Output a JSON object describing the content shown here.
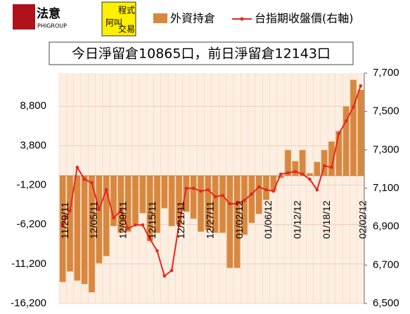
{
  "chart_data": {
    "type": "bar_line",
    "title": "今日淨留倉10865口，前日淨留倉12143口",
    "logos": [
      "法意",
      "PHIGROUP",
      "程式",
      "阿叫",
      "交易"
    ],
    "categories": [
      "11/29/11",
      null,
      null,
      null,
      "12/05/11",
      null,
      null,
      null,
      "12/09/11",
      null,
      null,
      null,
      "12/15/11",
      null,
      null,
      null,
      "12/21/11",
      null,
      null,
      null,
      "12/27/11",
      null,
      null,
      null,
      "01/02/12",
      null,
      null,
      null,
      "01/06/12",
      null,
      null,
      null,
      "01/12/12",
      null,
      null,
      null,
      "01/18/12",
      null,
      null,
      null,
      null,
      "02/02/12"
    ],
    "series": [
      {
        "name": "外資持倉",
        "color": "#d8883e",
        "kind": "bar",
        "values": [
          -13480,
          -12150,
          -13300,
          -13750,
          -14800,
          -11100,
          -10200,
          -6400,
          -7250,
          -7100,
          -6200,
          -4760,
          -8300,
          -7250,
          -4140,
          -6400,
          -6200,
          -4580,
          -5470,
          -7100,
          -6900,
          -7250,
          -7250,
          -11700,
          -11700,
          -7500,
          -6000,
          -4850,
          -3070,
          -1910,
          -300,
          3250,
          1830,
          3250,
          300,
          1740,
          3250,
          4320,
          5650,
          8770,
          12143,
          10865
        ]
      },
      {
        "name": "台指期收盤價(右軸)",
        "color": "#e8261c",
        "kind": "line",
        "axis": "y2",
        "values": [
          6909,
          6983,
          7209,
          7147,
          7129,
          6990,
          7092,
          6946,
          6983,
          6891,
          6909,
          6909,
          6836,
          6774,
          6643,
          6672,
          6909,
          7100,
          7100,
          7085,
          7092,
          7056,
          7063,
          7019,
          7019,
          7037,
          7070,
          7107,
          7092,
          7085,
          7173,
          7180,
          7187,
          7173,
          7147,
          7092,
          7217,
          7209,
          7385,
          7450,
          7524,
          7633
        ]
      }
    ],
    "ylim": [
      -16200,
      13000
    ],
    "yticks": [
      {
        "value": -16200,
        "label": "-16,200"
      },
      {
        "value": -11200,
        "label": "-11,200"
      },
      {
        "value": -6200,
        "label": "-6,200"
      },
      {
        "value": -1200,
        "label": "-1,200"
      },
      {
        "value": 3800,
        "label": "3,800"
      },
      {
        "value": 8800,
        "label": "8,800"
      }
    ],
    "y2lim": [
      6500,
      7700
    ],
    "y2ticks": [
      {
        "value": 6500,
        "label": "6,500"
      },
      {
        "value": 6700,
        "label": "6,700"
      },
      {
        "value": 6900,
        "label": "6,900"
      },
      {
        "value": 7100,
        "label": "7,100"
      },
      {
        "value": 7300,
        "label": "7,300"
      },
      {
        "value": 7500,
        "label": "7,500"
      },
      {
        "value": 7700,
        "label": "7,700"
      }
    ],
    "grid": true
  }
}
